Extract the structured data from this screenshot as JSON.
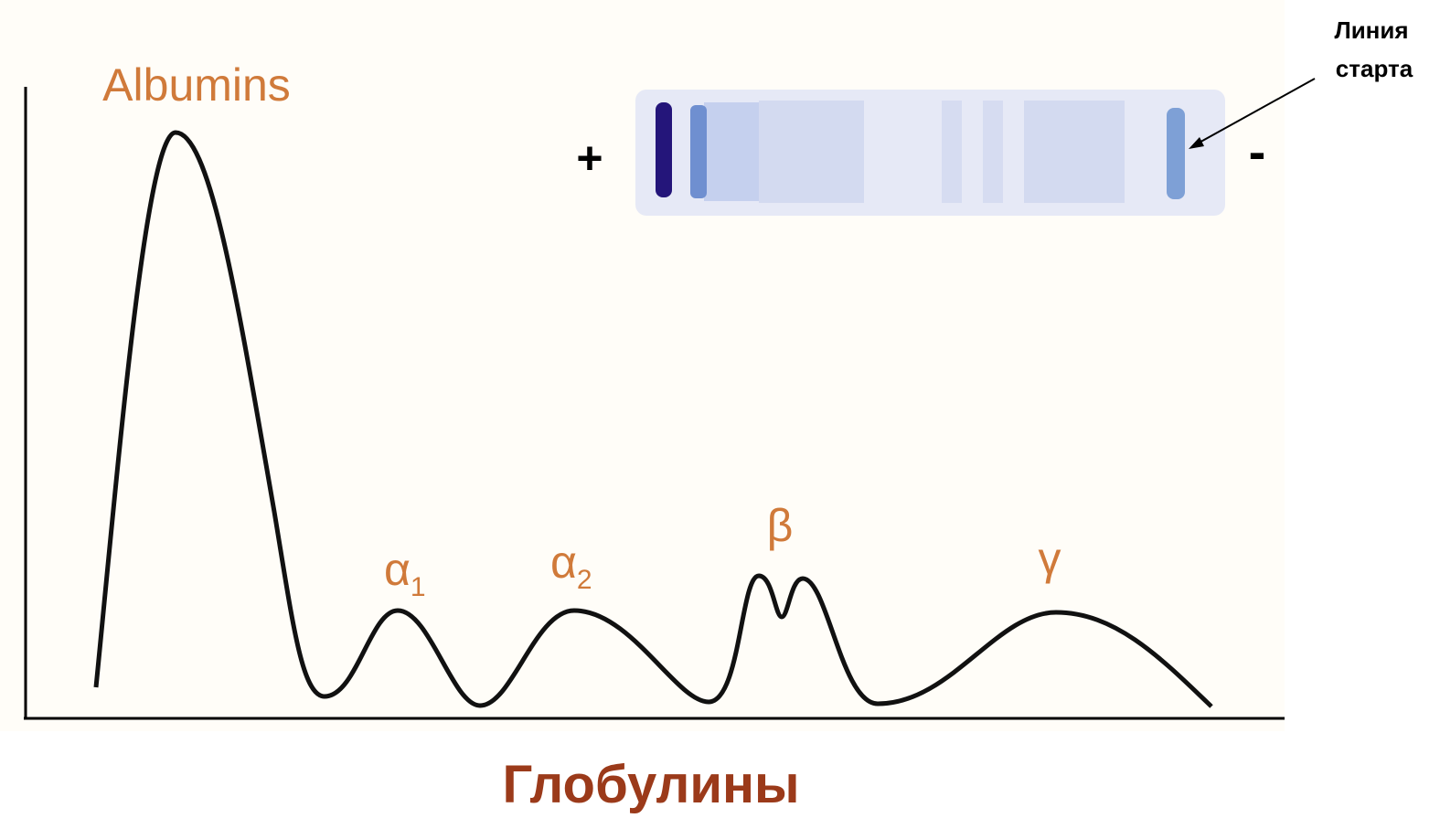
{
  "diagram": {
    "peaks": [
      {
        "label": "Albumins"
      },
      {
        "label": "α",
        "subscript": "1"
      },
      {
        "label": "α",
        "subscript": "2"
      },
      {
        "label": "β"
      },
      {
        "label": "γ"
      }
    ],
    "electrodes": {
      "plus": "+",
      "minus": "-"
    },
    "start_line": [
      "Линия",
      "старта"
    ],
    "caption": "Глобулины"
  }
}
